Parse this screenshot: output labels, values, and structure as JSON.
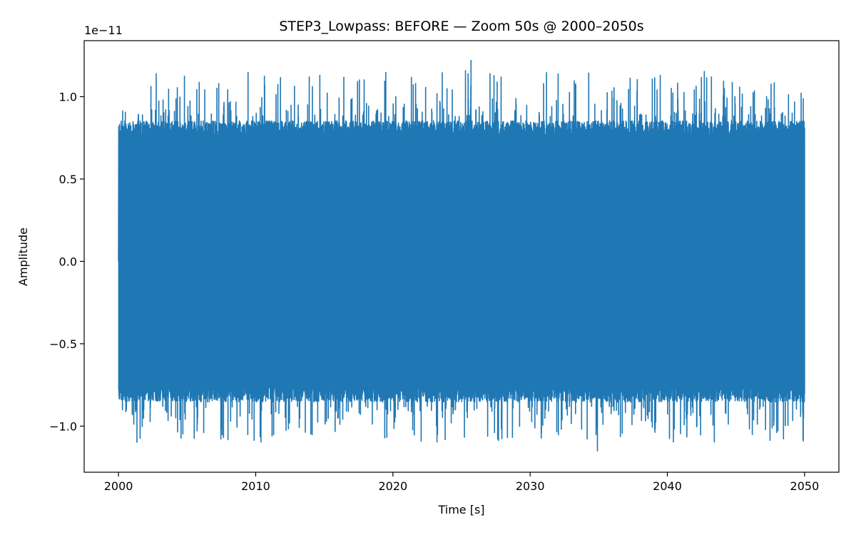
{
  "chart_data": {
    "type": "line",
    "title": "STEP3_Lowpass: BEFORE — Zoom 50s @ 2000–2050s",
    "xlabel": "Time [s]",
    "ylabel": "Amplitude",
    "y_offset_label": "1e−11",
    "xlim": [
      1997.5,
      2052.5
    ],
    "ylim": [
      -1.28,
      1.34
    ],
    "x_ticks": [
      2000,
      2010,
      2020,
      2030,
      2040,
      2050
    ],
    "x_tick_labels": [
      "2000",
      "2010",
      "2020",
      "2030",
      "2040",
      "2050"
    ],
    "y_ticks": [
      -1.0,
      -0.5,
      0.0,
      0.5,
      1.0
    ],
    "y_tick_labels": [
      "−1.0",
      "−0.5",
      "0.0",
      "0.5",
      "1.0"
    ],
    "grid": false,
    "series": [
      {
        "color": "#1f77b4",
        "x_range": [
          2000,
          2050
        ],
        "typical_envelope": [
          -0.88,
          0.88
        ],
        "max_value": 1.22,
        "max_at": 2025.7,
        "min_value": -1.15,
        "min_at": 2034.9
      }
    ]
  }
}
